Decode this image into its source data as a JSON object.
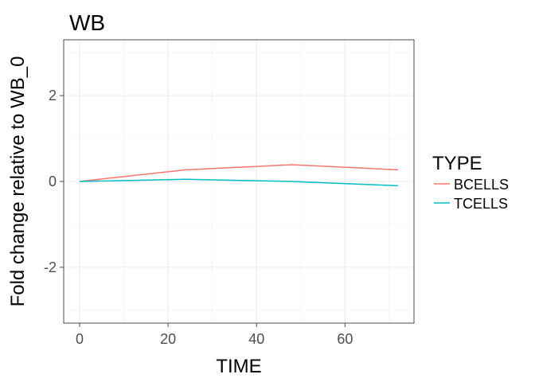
{
  "chart_data": {
    "type": "line",
    "title": "WB",
    "xlabel": "TIME",
    "ylabel": "Fold change relative to WB_0",
    "xlim": [
      -3.6,
      75.6
    ],
    "ylim": [
      -3.3,
      3.3
    ],
    "x_ticks": [
      0,
      20,
      40,
      60
    ],
    "y_ticks": [
      -2,
      0,
      2
    ],
    "grid": true,
    "legend": {
      "title": "TYPE",
      "position": "right"
    },
    "series": [
      {
        "name": "BCELLS",
        "color": "#F8766D",
        "x": [
          0,
          24,
          48,
          72
        ],
        "y": [
          0,
          0.27,
          0.39,
          0.27
        ]
      },
      {
        "name": "TCELLS",
        "color": "#00BFC4",
        "x": [
          0,
          24,
          48,
          72
        ],
        "y": [
          0,
          0.05,
          0.0,
          -0.1
        ]
      }
    ]
  }
}
